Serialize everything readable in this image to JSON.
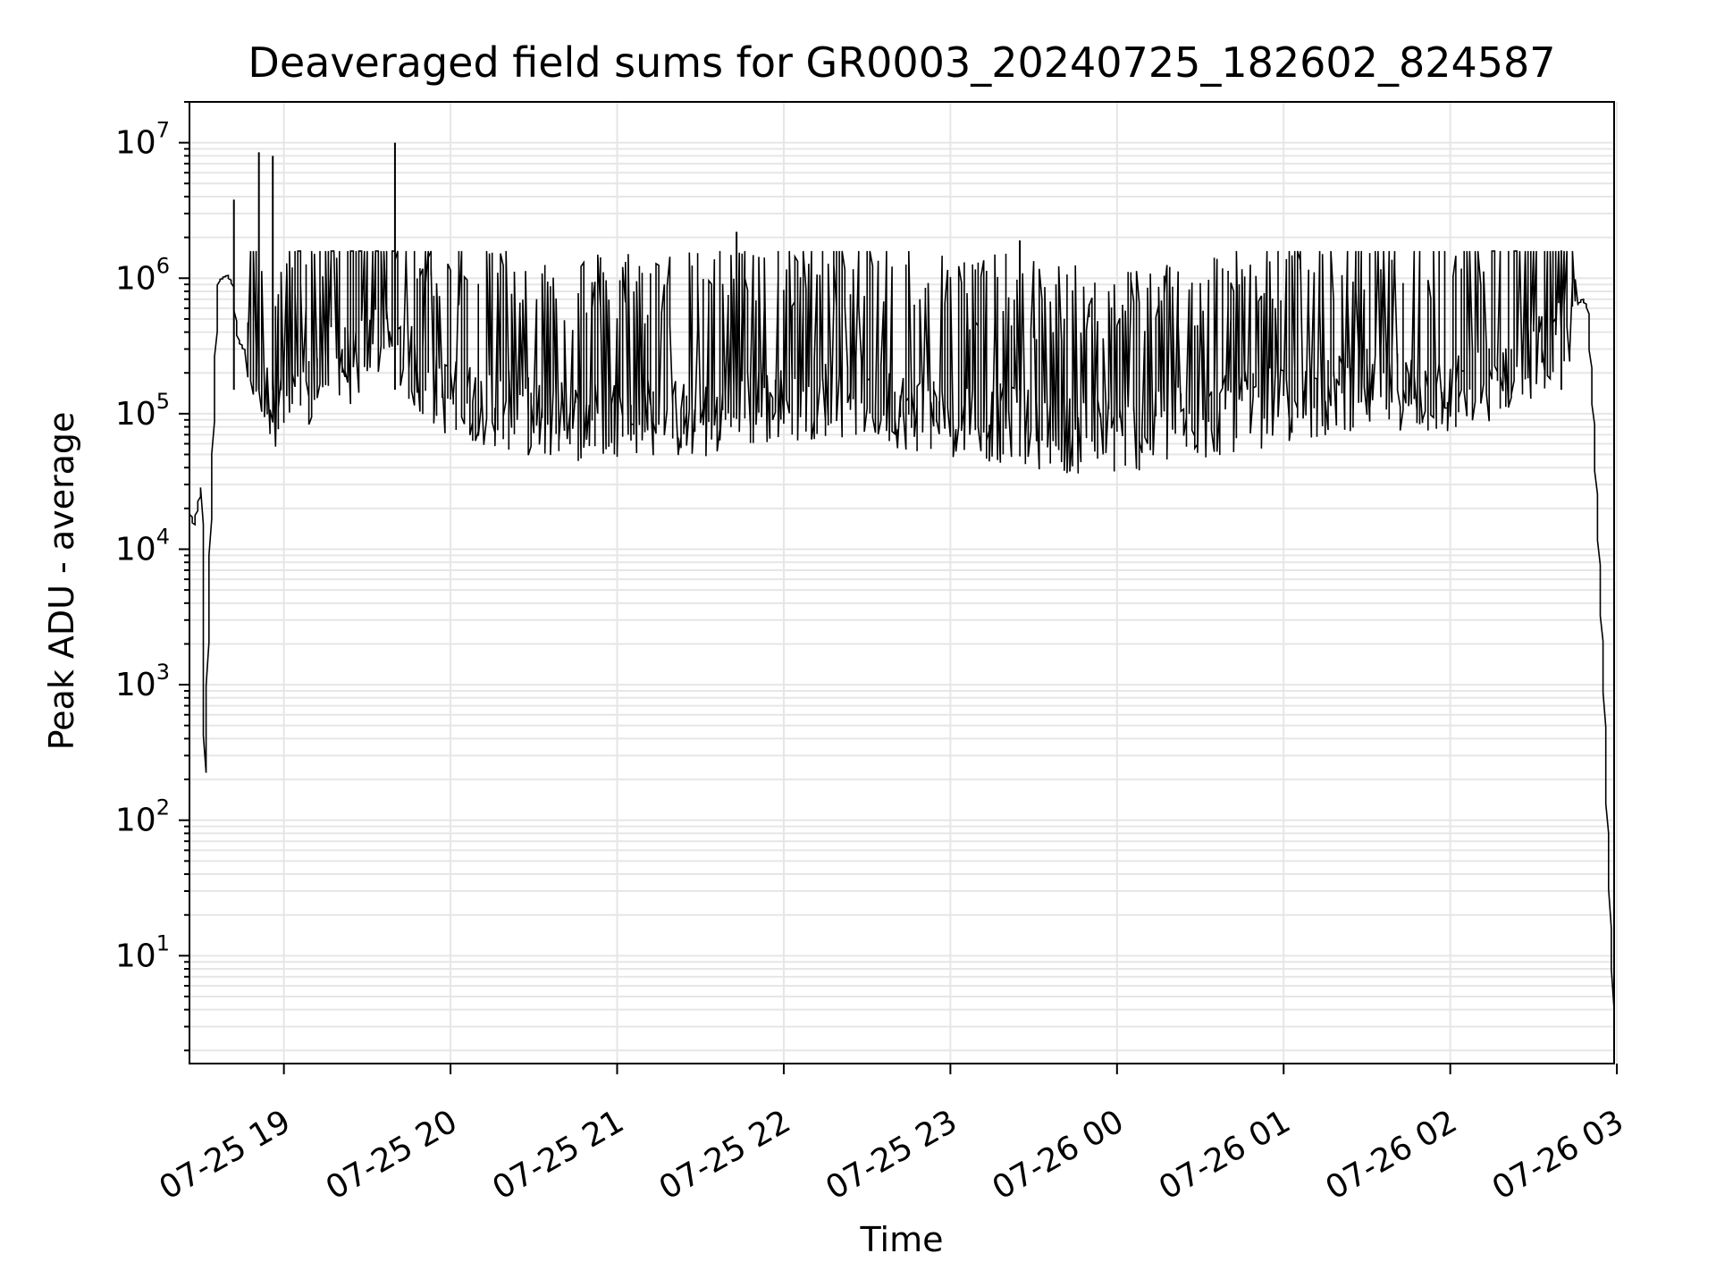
{
  "chart_data": {
    "type": "line",
    "title": "Deaveraged field sums for GR0003_20240725_182602_824587",
    "xlabel": "Time",
    "ylabel": "Peak ADU - average",
    "y_scale": "log",
    "ylim": [
      1.6,
      20000000
    ],
    "xlim": [
      "2024-07-25 18:26",
      "2024-07-26 02:59"
    ],
    "grid": true,
    "grid_color": "#e6e6e6",
    "line_color": "#000000",
    "x_ticks": [
      "2024-07-25 19:00",
      "2024-07-25 20:00",
      "2024-07-25 21:00",
      "2024-07-25 22:00",
      "2024-07-25 23:00",
      "2024-07-26 00:00",
      "2024-07-26 01:00",
      "2024-07-26 02:00",
      "2024-07-26 03:00"
    ],
    "x_tick_labels": [
      "07-25 19",
      "07-25 20",
      "07-25 21",
      "07-25 22",
      "07-25 23",
      "07-26 00",
      "07-26 01",
      "07-26 02",
      "07-26 03"
    ],
    "y_ticks": [
      {
        "base": "10",
        "exp": "1",
        "value": 10
      },
      {
        "base": "10",
        "exp": "2",
        "value": 100
      },
      {
        "base": "10",
        "exp": "3",
        "value": 1000
      },
      {
        "base": "10",
        "exp": "4",
        "value": 10000
      },
      {
        "base": "10",
        "exp": "5",
        "value": 100000
      },
      {
        "base": "10",
        "exp": "6",
        "value": 1000000
      },
      {
        "base": "10",
        "exp": "7",
        "value": 10000000
      }
    ],
    "series": [
      {
        "x": [
          "2024-07-25 18:26",
          "2024-07-25 18:28",
          "2024-07-25 18:31",
          "2024-07-25 18:32",
          "2024-07-25 18:34",
          "2024-07-25 18:36",
          "2024-07-25 18:37",
          "2024-07-25 18:40",
          "2024-07-25 18:42",
          "2024-07-25 18:43",
          "2024-07-25 18:44",
          "2024-07-25 18:46",
          "2024-07-25 18:49",
          "2024-07-25 18:51",
          "2024-07-25 18:53",
          "2024-07-25 18:54",
          "2024-07-25 18:56",
          "2024-07-25 18:57",
          "2024-07-25 19:00",
          "2024-07-25 19:05",
          "2024-07-25 19:10",
          "2024-07-25 19:15",
          "2024-07-25 19:20",
          "2024-07-25 19:25",
          "2024-07-25 19:30",
          "2024-07-25 19:35",
          "2024-07-25 19:40",
          "2024-07-25 19:45",
          "2024-07-25 19:50",
          "2024-07-25 20:00",
          "2024-07-25 20:15",
          "2024-07-25 20:30",
          "2024-07-25 20:45",
          "2024-07-25 21:00",
          "2024-07-25 21:15",
          "2024-07-25 21:30",
          "2024-07-25 21:45",
          "2024-07-25 22:00",
          "2024-07-25 22:15",
          "2024-07-25 22:30",
          "2024-07-25 22:45",
          "2024-07-25 23:00",
          "2024-07-25 23:15",
          "2024-07-25 23:30",
          "2024-07-25 23:45",
          "2024-07-26 00:00",
          "2024-07-26 00:15",
          "2024-07-26 00:30",
          "2024-07-26 00:45",
          "2024-07-26 01:00",
          "2024-07-26 01:15",
          "2024-07-26 01:30",
          "2024-07-26 01:45",
          "2024-07-26 02:00",
          "2024-07-26 02:15",
          "2024-07-26 02:30",
          "2024-07-26 02:40",
          "2024-07-26 02:45",
          "2024-07-26 02:48",
          "2024-07-26 02:50",
          "2024-07-26 02:52",
          "2024-07-26 02:54",
          "2024-07-26 02:56",
          "2024-07-26 02:57",
          "2024-07-26 02:58",
          "2024-07-26 02:59"
        ],
        "y": [
          20000,
          15000,
          30000,
          160,
          12000,
          300000,
          950000,
          1050000,
          900000,
          500000,
          350000,
          300000,
          250000,
          200000,
          180000,
          150000,
          140000,
          130000,
          130000,
          140000,
          160000,
          220000,
          300000,
          250000,
          350000,
          400000,
          350000,
          280000,
          200000,
          150000,
          130000,
          110000,
          100000,
          110000,
          110000,
          100000,
          120000,
          140000,
          150000,
          150000,
          120000,
          110000,
          100000,
          90000,
          80000,
          80000,
          90000,
          100000,
          120000,
          130000,
          150000,
          180000,
          170000,
          150000,
          200000,
          300000,
          400000,
          600000,
          700000,
          600000,
          100000,
          10000,
          800,
          120,
          30,
          4
        ]
      }
    ],
    "spikes": [
      {
        "x": "2024-07-25 18:42",
        "y": 3800000
      },
      {
        "x": "2024-07-25 18:51",
        "y": 8500000
      },
      {
        "x": "2024-07-25 18:56",
        "y": 8000000
      },
      {
        "x": "2024-07-25 19:40",
        "y": 10000000
      },
      {
        "x": "2024-07-25 21:43",
        "y": 2200000
      },
      {
        "x": "2024-07-25 23:25",
        "y": 1900000
      },
      {
        "x": "2024-07-26 02:40",
        "y": 1600000
      }
    ]
  }
}
